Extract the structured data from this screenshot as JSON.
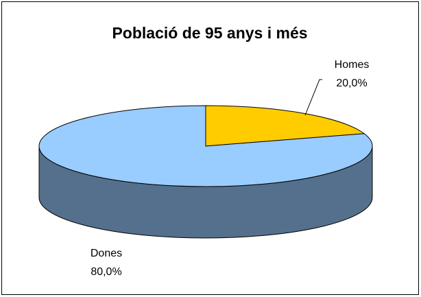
{
  "chart_data": {
    "type": "pie",
    "title": "Població de 95 anys i més",
    "categories": [
      "Homes",
      "Dones"
    ],
    "values": [
      20,
      80
    ],
    "value_labels": [
      "20,0%",
      "80,0%"
    ],
    "colors": [
      "#ffcc00",
      "#99ccff"
    ]
  }
}
